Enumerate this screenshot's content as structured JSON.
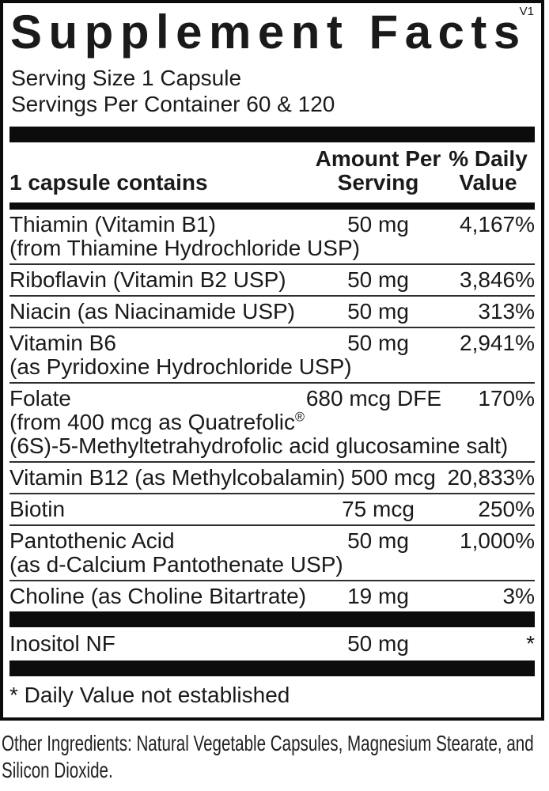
{
  "version": "V1",
  "title": "Supplement Facts",
  "serving": {
    "size": "Serving Size 1 Capsule",
    "per_container": "Servings Per Container 60 & 120"
  },
  "table": {
    "header": {
      "left": "1 capsule contains",
      "amount_line1": "Amount Per",
      "amount_line2": "Serving",
      "dv_line1": "% Daily",
      "dv_line2": "Value"
    },
    "rows": [
      {
        "name": "Thiamin (Vitamin B1)",
        "sub": [
          "(from Thiamine Hydrochloride USP)"
        ],
        "amount": "50 mg",
        "dv": "4,167%"
      },
      {
        "name": "Riboflavin (Vitamin B2 USP)",
        "sub": [],
        "amount": "50 mg",
        "dv": "3,846%"
      },
      {
        "name": "Niacin (as Niacinamide USP)",
        "sub": [],
        "amount": "50 mg",
        "dv": "313%"
      },
      {
        "name": "Vitamin B6",
        "sub": [
          "(as Pyridoxine Hydrochloride USP)"
        ],
        "amount": "50 mg",
        "dv": "2,941%"
      },
      {
        "name": "Folate",
        "sub": [
          "(from 400 mcg as Quatrefolic®",
          "(6S)-5-Methyltetrahydrofolic acid glucosamine salt)"
        ],
        "amount": "680 mcg DFE",
        "dv": "170%"
      },
      {
        "name": "Vitamin B12 (as Methylcobalamin)",
        "sub": [],
        "amount": "500 mcg",
        "dv": "20,833%"
      },
      {
        "name": "Biotin",
        "sub": [],
        "amount": "75 mcg",
        "dv": "250%"
      },
      {
        "name": "Pantothenic Acid",
        "sub": [
          "(as d-Calcium Pantothenate USP)"
        ],
        "amount": "50 mg",
        "dv": "1,000%"
      },
      {
        "name": "Choline (as Choline Bitartrate)",
        "sub": [],
        "amount": "19 mg",
        "dv": "3%"
      }
    ],
    "extra_row": {
      "name": "Inositol NF",
      "amount": "50 mg",
      "dv": "*"
    }
  },
  "footnote": "* Daily Value not established",
  "other_ingredients": "Other Ingredients: Natural Vegetable Capsules, Magnesium Stearate, and Silicon Dioxide.",
  "colors": {
    "text": "#1a1a1a",
    "bar": "#0c0c0c"
  }
}
